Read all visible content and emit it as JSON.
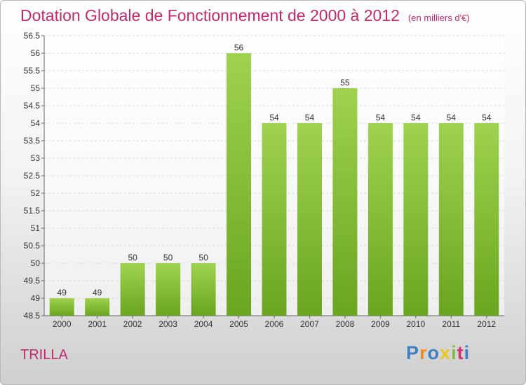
{
  "header": {
    "title": "Dotation Globale de Fonctionnement de 2000 à 2012",
    "subtitle": "(en milliers d'€)"
  },
  "footer": {
    "commune": "TRILLA",
    "logo": {
      "letters": [
        "P",
        "r",
        "o",
        "x",
        "i",
        "t",
        "i"
      ],
      "colors": [
        "#3f7fc4",
        "#f08a1c",
        "#3f7fc4",
        "#e8c81a",
        "#7fc043",
        "#d62f72",
        "#3f7fc4"
      ]
    }
  },
  "chart_data": {
    "type": "bar",
    "categories": [
      "2000",
      "2001",
      "2002",
      "2003",
      "2004",
      "2005",
      "2006",
      "2007",
      "2008",
      "2009",
      "2010",
      "2011",
      "2012"
    ],
    "values": [
      49,
      49,
      50,
      50,
      50,
      56,
      54,
      54,
      55,
      54,
      54,
      54,
      54
    ],
    "value_labels": [
      "49",
      "49",
      "50",
      "50",
      "50",
      "56",
      "54",
      "54",
      "55",
      "54",
      "54",
      "54",
      "54"
    ],
    "yticks": [
      "48.5",
      "49",
      "49.5",
      "50",
      "50.5",
      "51",
      "51.5",
      "52",
      "52.5",
      "53",
      "53.5",
      "54",
      "54.5",
      "55",
      "55.5",
      "56",
      "56.5"
    ],
    "ylim": [
      48.5,
      56.5
    ],
    "grid": true,
    "bar_color": "#8cc63f"
  }
}
